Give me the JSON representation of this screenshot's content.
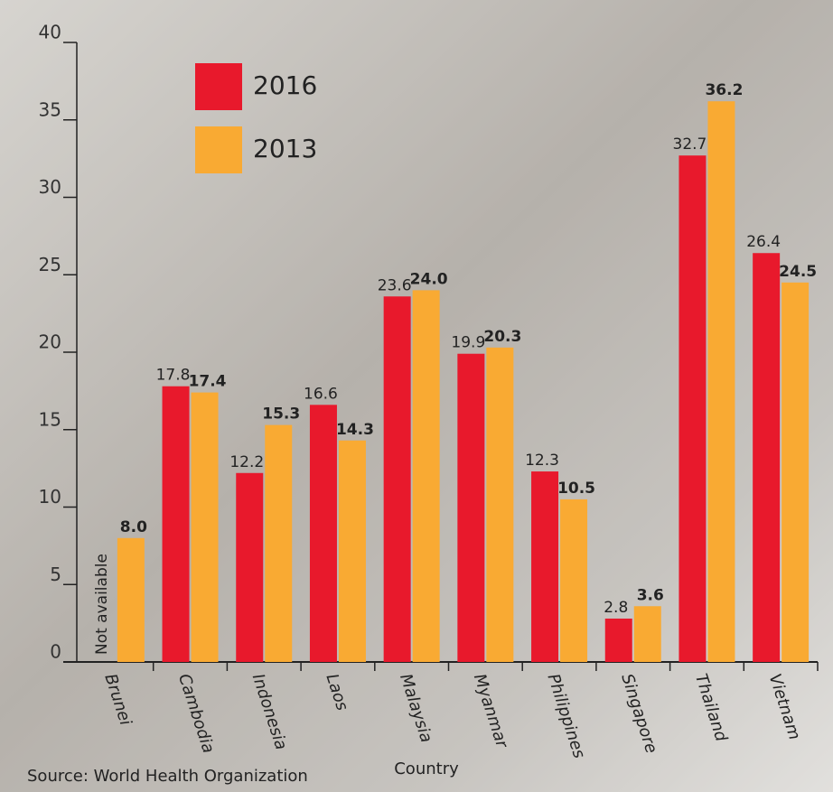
{
  "chart_data": {
    "type": "bar",
    "categories": [
      "Brunei",
      "Cambodia",
      "Indonesia",
      "Laos",
      "Malaysia",
      "Myanmar",
      "Philippines",
      "Singapore",
      "Thailand",
      "Vietnam"
    ],
    "series": [
      {
        "name": "2016",
        "color": "#e8192c",
        "values": [
          null,
          17.8,
          12.2,
          16.6,
          23.6,
          19.9,
          12.3,
          2.8,
          32.7,
          26.4
        ]
      },
      {
        "name": "2013",
        "color": "#f9aa33",
        "values": [
          8.0,
          17.4,
          15.3,
          14.3,
          24.0,
          20.3,
          10.5,
          3.6,
          36.2,
          24.5
        ],
        "value_labels": [
          "8.0",
          "17.4",
          "15.3",
          "14.3",
          "24.0",
          "20.3",
          "10.5",
          "3.6",
          "36.2",
          "24.5"
        ]
      }
    ],
    "annotation": "Not available",
    "xlabel": "Country",
    "source": "Source: World Health Organization",
    "ylim": [
      0,
      40
    ],
    "yticks": [
      0,
      5,
      10,
      15,
      20,
      25,
      30,
      35,
      40
    ]
  }
}
